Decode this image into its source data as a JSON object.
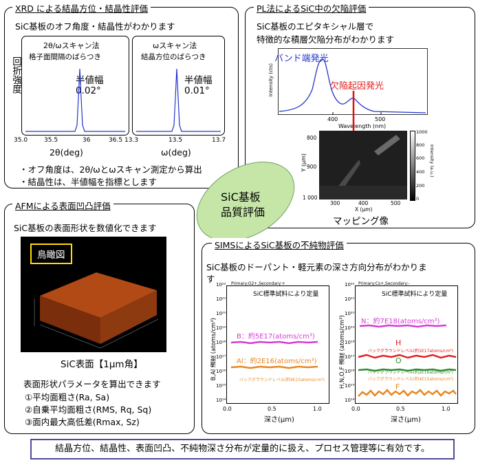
{
  "xrd": {
    "title": "XRD による結晶方位・結晶性評価",
    "subtitle": "SiC基板のオフ角度・結晶性がわかります",
    "ylabel": "回折強度",
    "left_title": "2θ/ωスキャン法",
    "left_subtitle": "格子面間隔のばらつき",
    "left_fwhm_label": "半値幅",
    "left_fwhm_value": "0.02°",
    "left_ticks": [
      "35.0",
      "35.5",
      "36",
      "36.5"
    ],
    "left_xlabel": "2θ(deg)",
    "right_title": "ωスキャン法",
    "right_subtitle": "結晶方位のばらつき",
    "right_fwhm_label": "半値幅",
    "right_fwhm_value": "0.01°",
    "right_ticks": [
      "13.3",
      "13.5",
      "13.7"
    ],
    "right_xlabel": "ω(deg)",
    "note1": "・オフ角度は、2θ/ωとωスキャン測定から算出",
    "note2": "・結晶性は、半値幅を指標とします"
  },
  "pl": {
    "title": "PL法によるSiC中の欠陥評価",
    "line1": "SiC基板のエピタキシャル層で",
    "line2": "特徴的な積層欠陥分布がわかります",
    "band_label": "バンド端発光",
    "defect_label": "欠陥起因発光",
    "spectrum_ylabel": "Intensity (cts)",
    "spectrum_xticks": [
      "400",
      "500"
    ],
    "spectrum_xlabel": "Wavelength (nm)",
    "map_yticks": [
      "800",
      "900",
      "1 000"
    ],
    "map_xticks": [
      "300",
      "400",
      "500"
    ],
    "map_ylabel": "Y (μm)",
    "map_xlabel": "X (μm)",
    "colorbar_ticks": [
      "1000",
      "800",
      "600",
      "400",
      "200",
      "0"
    ],
    "colorbar_label": "Intensity (a.u.)",
    "caption": "マッピング像"
  },
  "center": {
    "line1": "SiC基板",
    "line2": "品質評価"
  },
  "afm": {
    "title": "AFMによる表面凹凸評価",
    "subtitle": "SiC基板の表面形状を数値化できます",
    "image_label": "鳥瞰図",
    "caption": "SiC表面【1μm角】",
    "params_heading": "表面形状パラメータを算出できます",
    "item1": "①平均面粗さ(Ra, Sa)",
    "item2": "②自乗平均面粗さ(RMS, Rq, Sq)",
    "item3": "③面内最大高低差(Rmax, Sz)"
  },
  "sims": {
    "title": "SIMSによるSiC基板の不純物評価",
    "subtitle_line1": "SiC基板のドーパント・軽元素の深さ方向分布がわかりま",
    "subtitle_line2": "す",
    "left_ylabel": "B,Al 濃度 (atoms/cm³)",
    "right_ylabel": "H,N,O,F 濃度 (atoms/cm³)",
    "yticks": [
      "10²²",
      "10²¹",
      "10²⁰",
      "10¹⁹",
      "10¹⁸",
      "10¹⁷",
      "10¹⁶",
      "10¹⁵",
      "10¹⁴"
    ],
    "xticks": [
      "0.0",
      "0.5",
      "1.0"
    ],
    "xlabel": "深さ(μm)",
    "header_note": "Primary:O2+,Secondary:+",
    "header_note_right": "Primary:Cs+,Secondary:-",
    "standard_note": "SiC標準試料により定量",
    "b_label": "B：約5E17(atoms/cm³)",
    "al_label": "Al：約2E16(atoms/cm³)",
    "bg_left": "バックグラウンドレベル(約4E15atoms/cm³)",
    "n_label": "N：約7E18(atoms/cm³)",
    "h_label": "H",
    "o_label": "O",
    "f_label": "F",
    "bg_h": "バックグラウンドレベル(約1E17atoms/cm³)",
    "bg_o": "バックグラウンドレベル(約2E16atoms/cm³)",
    "bg_f": "バックグラウンドレベル(約4E15atoms/cm³)"
  },
  "footer": {
    "text": "結晶方位、結晶性、表面凹凸、不純物深さ分布が定量的に扱え、プロセス管理等に有効です。"
  },
  "colors": {
    "boron": "#d63ad6",
    "aluminum": "#e8861e",
    "nitrogen": "#d63ad6",
    "hydrogen": "#e02020",
    "oxygen": "#2e8b2e",
    "fluorine": "#e8861e",
    "spectrum": "#2233cc",
    "ellipse": "#c6e6a8"
  }
}
